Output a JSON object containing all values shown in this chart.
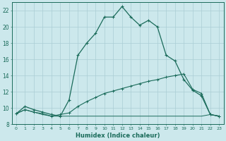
{
  "xlabel": "Humidex (Indice chaleur)",
  "bg_color": "#cce8ec",
  "grid_color": "#aacdd4",
  "line_color": "#1a6b5a",
  "xlim": [
    -0.5,
    23.5
  ],
  "ylim": [
    8,
    23
  ],
  "xticks": [
    0,
    1,
    2,
    3,
    4,
    5,
    6,
    7,
    8,
    9,
    10,
    11,
    12,
    13,
    14,
    15,
    16,
    17,
    18,
    19,
    20,
    21,
    22,
    23
  ],
  "yticks": [
    8,
    10,
    12,
    14,
    16,
    18,
    20,
    22
  ],
  "line1_x": [
    0,
    1,
    2,
    3,
    4,
    5,
    6,
    7,
    8,
    9,
    10,
    11,
    12,
    13,
    14,
    15,
    16,
    17,
    18,
    19,
    20,
    21,
    22,
    23
  ],
  "line1_y": [
    9.3,
    10.2,
    9.8,
    9.5,
    9.2,
    9.0,
    11.0,
    16.5,
    18.0,
    19.2,
    21.2,
    21.2,
    22.5,
    21.2,
    20.2,
    20.8,
    20.0,
    16.5,
    15.8,
    13.5,
    12.2,
    11.5,
    9.2,
    9.0
  ],
  "line2_x": [
    0,
    1,
    2,
    3,
    4,
    5,
    6,
    7,
    8,
    9,
    10,
    11,
    12,
    13,
    14,
    15,
    16,
    17,
    18,
    19,
    20,
    21,
    22,
    23
  ],
  "line2_y": [
    9.3,
    9.8,
    9.5,
    9.3,
    9.0,
    9.2,
    9.4,
    10.2,
    10.8,
    11.3,
    11.8,
    12.1,
    12.4,
    12.7,
    13.0,
    13.3,
    13.5,
    13.8,
    14.0,
    14.2,
    12.3,
    11.8,
    9.2,
    9.0
  ],
  "line3_x": [
    0,
    1,
    2,
    3,
    4,
    5,
    6,
    7,
    8,
    9,
    10,
    11,
    12,
    13,
    14,
    15,
    16,
    17,
    18,
    19,
    20,
    21,
    22,
    23
  ],
  "line3_y": [
    9.3,
    9.8,
    9.5,
    9.2,
    9.0,
    9.0,
    9.0,
    9.0,
    9.0,
    9.0,
    9.0,
    9.0,
    9.0,
    9.0,
    9.0,
    9.0,
    9.0,
    9.0,
    9.0,
    9.0,
    9.0,
    9.0,
    9.2,
    9.0
  ]
}
